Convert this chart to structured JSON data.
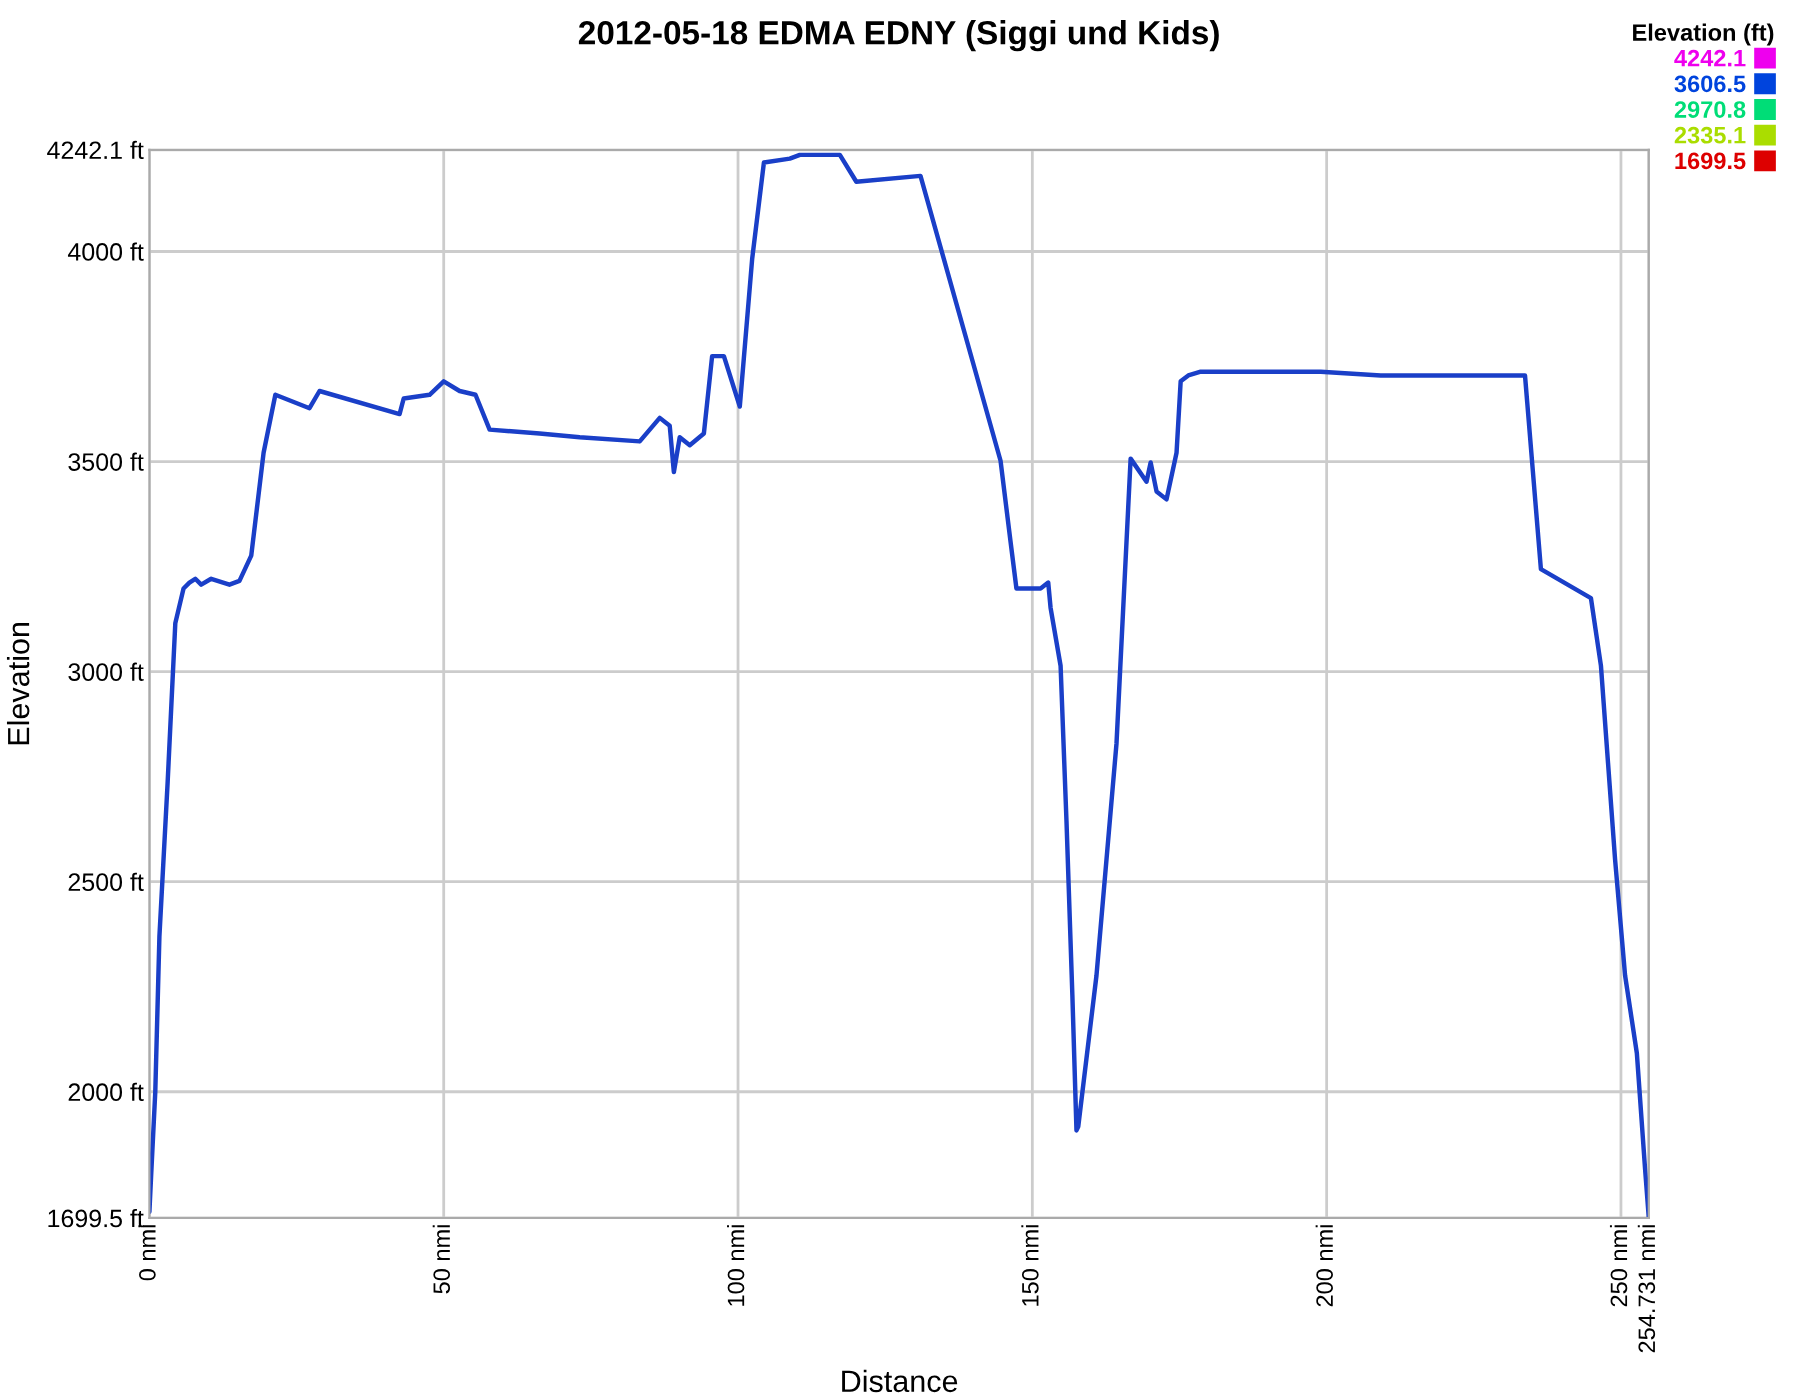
{
  "chart_data": {
    "type": "line",
    "title": "2012-05-18 EDMA EDNY (Siggi und Kids)",
    "xlabel": "Distance",
    "ylabel": "Elevation",
    "clabel": "Elevation (ft)",
    "cticks": [
      4242.1,
      3606.5,
      2970.8,
      2335.1,
      1699.5
    ],
    "colors": [
      "#ee00ee",
      "#0044dd",
      "#00dd77",
      "#aadd00",
      "#dd0000"
    ],
    "xlim": [
      0,
      254.731
    ],
    "ylim": [
      1699.5,
      4242.1
    ],
    "xticks": [
      {
        "value": 0,
        "label": "0 nmi"
      },
      {
        "value": 50,
        "label": "50 nmi"
      },
      {
        "value": 100,
        "label": "100 nmi"
      },
      {
        "value": 150,
        "label": "150 nmi"
      },
      {
        "value": 200,
        "label": "200 nmi"
      },
      {
        "value": 250,
        "label": "250 nmi"
      },
      {
        "value": 254.731,
        "label": "254.731 nmi"
      }
    ],
    "yticks": [
      {
        "value": 1699.5,
        "label": "1699.5 ft"
      },
      {
        "value": 2000,
        "label": "2000 ft"
      },
      {
        "value": 2500,
        "label": "2500 ft"
      },
      {
        "value": 3000,
        "label": "3000 ft"
      },
      {
        "value": 3500,
        "label": "3500 ft"
      },
      {
        "value": 4000,
        "label": "4000 ft"
      },
      {
        "value": 4242.1,
        "label": "4242.1 ft"
      }
    ],
    "grid": true,
    "series": [
      {
        "color": "#1a3fc8",
        "x": [
          0,
          0.3,
          1.0,
          1.7,
          3.1,
          4.4,
          5.8,
          6.8,
          7.8,
          8.8,
          10.5,
          13.6,
          15.3,
          17.3,
          19.4,
          21.4,
          27.2,
          28.9,
          42.5,
          43.2,
          47.6,
          50.0,
          52.7,
          55.4,
          57.8,
          66.3,
          73.1,
          83.3,
          86.7,
          88.4,
          89.1,
          90.1,
          91.8,
          94.2,
          95.6,
          97.6,
          100.3,
          102.4,
          104.4,
          108.8,
          110.5,
          117.3,
          120.1,
          131,
          144.6,
          146.3,
          147.3,
          151.4,
          152.7,
          153.1,
          154.8,
          155.8,
          156.8,
          157.5,
          157.8,
          160.9,
          164.3,
          166.7,
          169.4,
          170.1,
          171.1,
          172.8,
          174.5,
          175.2,
          176.5,
          178.6,
          199,
          209.2,
          233.7,
          236.4,
          244.9,
          246.6,
          249.0,
          250.7,
          252.7,
          254.1,
          254.731
        ],
        "values": [
          1714,
          1802,
          2000,
          2369,
          2737,
          3115,
          3198,
          3212,
          3221,
          3207,
          3221,
          3207,
          3216,
          3276,
          3521,
          3659,
          3627,
          3668,
          3613,
          3650,
          3659,
          3691,
          3668,
          3659,
          3576,
          3567,
          3558,
          3548,
          3604,
          3585,
          3475,
          3558,
          3539,
          3567,
          3751,
          3751,
          3631,
          3982,
          4212,
          4221,
          4230,
          4230,
          4166,
          4180,
          3502,
          3309,
          3198,
          3198,
          3212,
          3152,
          3014,
          2645,
          2231,
          1908,
          1917,
          2277,
          2829,
          3507,
          3452,
          3498,
          3429,
          3410,
          3521,
          3691,
          3705,
          3714,
          3714,
          3705,
          3705,
          3244,
          3175,
          3014,
          2553,
          2277,
          2092,
          1816,
          1699.5
        ]
      }
    ]
  }
}
